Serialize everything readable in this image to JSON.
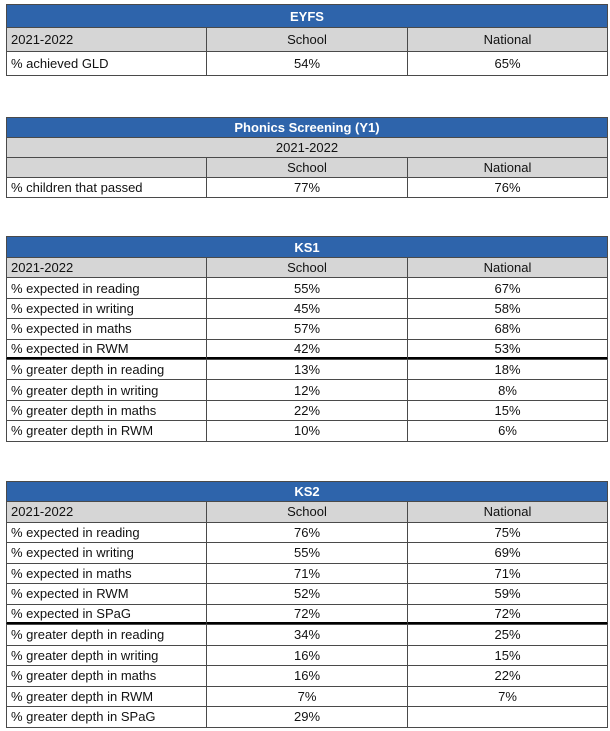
{
  "eyfs": {
    "title": "EYFS",
    "header": [
      "2021-2022",
      "School",
      "National"
    ],
    "rows": [
      [
        "% achieved GLD",
        "54%",
        "65%"
      ]
    ]
  },
  "phonics": {
    "title": "Phonics Screening (Y1)",
    "period": "2021-2022",
    "header": [
      "School",
      "National"
    ],
    "rows": [
      [
        "% children that passed",
        "77%",
        "76%"
      ]
    ]
  },
  "ks1": {
    "title": "KS1",
    "header": [
      "2021-2022",
      "School",
      "National"
    ],
    "rows": [
      [
        "% expected in reading",
        "55%",
        "67%"
      ],
      [
        "% expected in writing",
        "45%",
        "58%"
      ],
      [
        "% expected in maths",
        "57%",
        "68%"
      ],
      [
        "% expected in RWM",
        "42%",
        "53%"
      ],
      [
        "% greater depth in reading",
        "13%",
        "18%"
      ],
      [
        "% greater depth in writing",
        "12%",
        "8%"
      ],
      [
        "% greater depth in maths",
        "22%",
        "15%"
      ],
      [
        "% greater depth in RWM",
        "10%",
        "6%"
      ]
    ]
  },
  "ks2": {
    "title": "KS2",
    "header": [
      "2021-2022",
      "School",
      "National"
    ],
    "rows": [
      [
        "% expected in reading",
        "76%",
        "75%"
      ],
      [
        "% expected in writing",
        "55%",
        "69%"
      ],
      [
        "% expected in maths",
        "71%",
        "71%"
      ],
      [
        "% expected in RWM",
        "52%",
        "59%"
      ],
      [
        "% expected in SPaG",
        "72%",
        "72%"
      ],
      [
        "% greater depth in reading",
        "34%",
        "25%"
      ],
      [
        "% greater depth in writing",
        "16%",
        "15%"
      ],
      [
        "% greater depth in maths",
        "16%",
        "22%"
      ],
      [
        "% greater depth in RWM",
        "7%",
        "7%"
      ],
      [
        "% greater depth in SPaG",
        "29%"
      ]
    ]
  }
}
